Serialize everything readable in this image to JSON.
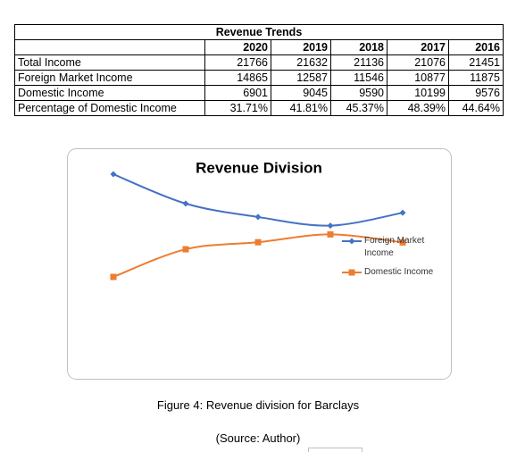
{
  "table": {
    "title": "Revenue Trends",
    "columns": [
      2020,
      2019,
      2018,
      2017,
      2016
    ],
    "rows": [
      {
        "label": "Total Income",
        "cells": [
          21766,
          21632,
          21136,
          21076,
          21451
        ]
      },
      {
        "label": "Foreign Market Income",
        "cells": [
          14865,
          12587,
          11546,
          10877,
          11875
        ]
      },
      {
        "label": "Domestic Income",
        "cells": [
          6901,
          9045,
          9590,
          10199,
          9576
        ]
      },
      {
        "label": "Percentage of Domestic Income",
        "cells": [
          "31.71%",
          "41.81%",
          "45.37%",
          "48.39%",
          "44.64%"
        ]
      }
    ]
  },
  "chart_data": {
    "type": "line",
    "title": "Revenue Division",
    "series": [
      {
        "name": "Foreign Market Income",
        "color": "#4472c4",
        "marker": "diamond",
        "values": [
          14865,
          12587,
          11546,
          10877,
          11875
        ]
      },
      {
        "name": "Domestic Income",
        "color": "#ed7d31",
        "marker": "square",
        "values": [
          6901,
          9045,
          9590,
          10199,
          9576
        ]
      }
    ]
  },
  "caption": "Figure 4: Revenue division for Barclays",
  "source": "(Source: Author)"
}
